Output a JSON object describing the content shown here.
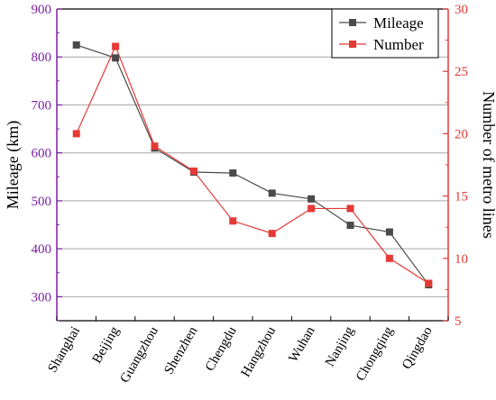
{
  "chart_data": {
    "type": "line",
    "categories": [
      "Shanghai",
      "Beijing",
      "Guangzhou",
      "Shenzhen",
      "Chengdu",
      "Hangzhou",
      "Wuhan",
      "Nanjing",
      "Chongqing",
      "Qingdao"
    ],
    "series": [
      {
        "name": "Mileage",
        "axis": "left",
        "color": "#4a4a4a",
        "marker": "square",
        "values": [
          825,
          798,
          610,
          560,
          558,
          516,
          504,
          449,
          435,
          325
        ]
      },
      {
        "name": "Number",
        "axis": "right",
        "color": "#e53935",
        "marker": "square",
        "values": [
          20,
          27,
          19,
          17,
          13,
          12,
          14,
          14,
          10,
          8
        ]
      }
    ],
    "ylabel_left": "Mileage (km)",
    "ylabel_right": "Number of metro lines",
    "xlabel": "",
    "ylim_left": [
      250,
      900
    ],
    "ylim_right": [
      5,
      30
    ],
    "yticks_left": [
      300,
      400,
      500,
      600,
      700,
      800,
      900
    ],
    "yticks_right": [
      5,
      10,
      15,
      20,
      25,
      30
    ],
    "left_axis_color": "#7b1fa2",
    "right_axis_color": "#e53935",
    "gridlines": "horizontal",
    "legend_position": "top-right"
  }
}
